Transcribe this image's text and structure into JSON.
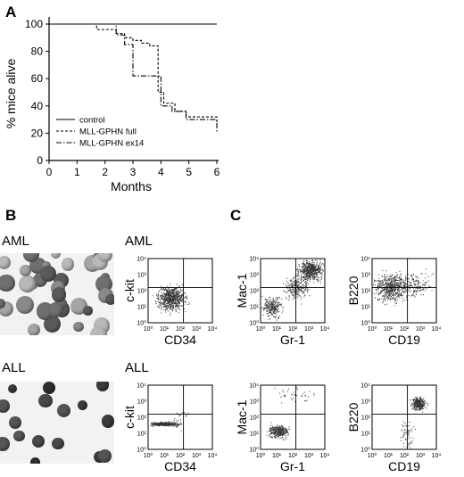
{
  "panel_a": {
    "letter": "A",
    "chart_data": {
      "type": "line",
      "title": "",
      "xlabel": "Months",
      "ylabel": "% mice alive",
      "xlim": [
        0,
        6
      ],
      "ylim": [
        0,
        100
      ],
      "xticks": [
        "0",
        "1",
        "2",
        "3",
        "4",
        "5",
        "6"
      ],
      "yticks": [
        "0",
        "20",
        "40",
        "60",
        "80",
        "100"
      ],
      "legend_placement": "bottom-left",
      "series": [
        {
          "name": "control",
          "style": "solid",
          "x": [
            0,
            6
          ],
          "y": [
            100,
            100
          ]
        },
        {
          "name": "MLL-GPHN full",
          "style": "dashed",
          "x": [
            0,
            1.7,
            1.7,
            2.4,
            2.4,
            2.7,
            2.7,
            3.0,
            3.0,
            3.3,
            3.3,
            3.6,
            3.6,
            3.9,
            3.9,
            4.1,
            4.1,
            4.5,
            4.5,
            4.9,
            4.9,
            6.0,
            6.0
          ],
          "y": [
            100,
            100,
            96,
            96,
            93,
            93,
            90,
            90,
            88,
            88,
            86,
            86,
            84,
            84,
            50,
            50,
            42,
            42,
            36,
            36,
            32,
            32,
            28
          ]
        },
        {
          "name": "MLL-GPHN ex14",
          "style": "dash-dot",
          "x": [
            0,
            2.4,
            2.4,
            2.7,
            2.7,
            3.0,
            3.0,
            3.7,
            3.7,
            4.0,
            4.0,
            4.4,
            4.4,
            4.9,
            4.9,
            6.0,
            6.0
          ],
          "y": [
            100,
            100,
            92,
            92,
            85,
            85,
            62,
            62,
            62,
            62,
            40,
            40,
            36,
            36,
            30,
            30,
            20
          ]
        }
      ]
    }
  },
  "panel_b": {
    "letter": "B",
    "row1": "AML",
    "row2": "ALL"
  },
  "panel_c": {
    "letter": "C",
    "row1": "AML",
    "row2": "ALL",
    "tick_labels": [
      "10⁰",
      "10¹",
      "10²",
      "10³",
      "10⁴"
    ],
    "plots": [
      {
        "xlabel": "CD34",
        "ylabel": "c-kit"
      },
      {
        "xlabel": "Gr-1",
        "ylabel": "Mac-1"
      },
      {
        "xlabel": "CD19",
        "ylabel": "B220"
      },
      {
        "xlabel": "CD34",
        "ylabel": "c-kit"
      },
      {
        "xlabel": "Gr-1",
        "ylabel": "Mac-1"
      },
      {
        "xlabel": "CD19",
        "ylabel": "B220"
      }
    ]
  }
}
